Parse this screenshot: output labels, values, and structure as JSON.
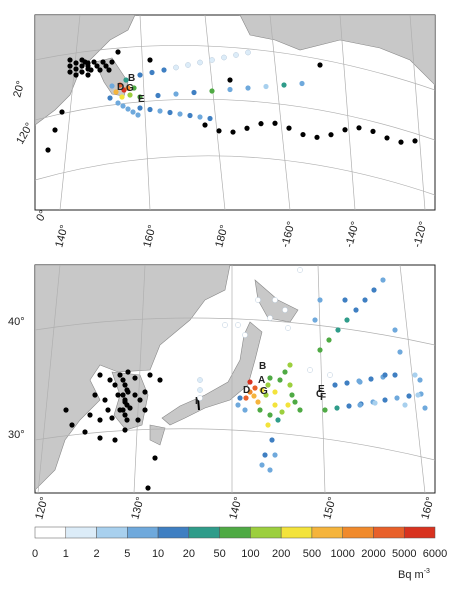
{
  "top_map": {
    "lat_labels": [
      "20°",
      "120°",
      "0°"
    ],
    "lon_labels": [
      "140°",
      "160°",
      "180°",
      "-160°",
      "-140°",
      "-120°"
    ],
    "station_labels": [
      "B",
      "D",
      "G",
      "E"
    ]
  },
  "bottom_map": {
    "lat_labels": [
      "40°",
      "30°"
    ],
    "lon_labels": [
      "120°",
      "130°",
      "140°",
      "150°",
      "160°"
    ],
    "station_labels": [
      "B",
      "A",
      "D",
      "G",
      "E",
      "C",
      "F",
      "I"
    ]
  },
  "colorbar": {
    "labels": [
      "0",
      "1",
      "2",
      "5",
      "10",
      "20",
      "50",
      "100",
      "200",
      "500",
      "1000",
      "2000",
      "5000",
      "6000"
    ],
    "colors": [
      "#ffffff",
      "#dcecf8",
      "#a8d0ee",
      "#6fa9dc",
      "#3f7fc2",
      "#2f9c8a",
      "#4faa44",
      "#9ccf3e",
      "#f3e33b",
      "#f5b43c",
      "#f08a2c",
      "#e8602a",
      "#d8321f"
    ],
    "unit": {
      "base": "Bq m",
      "exponent": "-3"
    }
  }
}
